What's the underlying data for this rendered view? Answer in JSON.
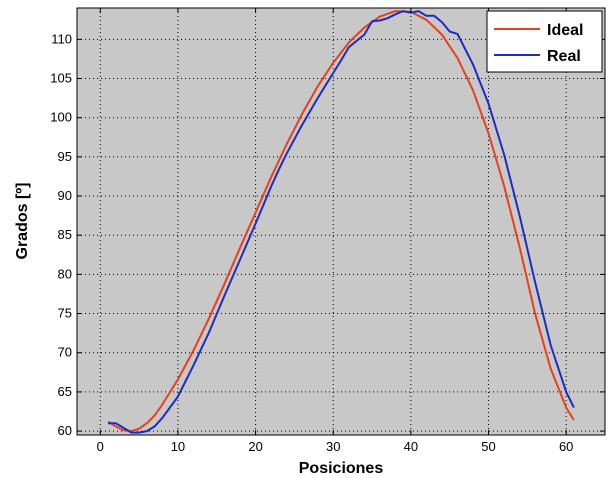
{
  "chart_data": {
    "type": "line",
    "title": "",
    "xlabel": "Posiciones",
    "ylabel": "Grados [º]",
    "xlim": [
      -3,
      65
    ],
    "ylim": [
      59.5,
      114
    ],
    "xticks": [
      0,
      10,
      20,
      30,
      40,
      50,
      60
    ],
    "yticks": [
      60,
      65,
      70,
      75,
      80,
      85,
      90,
      95,
      100,
      105,
      110
    ],
    "grid": true,
    "legend_position": "top-right",
    "background_color": "#c8c8c8",
    "series": [
      {
        "name": "Ideal",
        "color": "#e8401c",
        "x": [
          1,
          2,
          3,
          4,
          5,
          6,
          7,
          8,
          10,
          12,
          14,
          16,
          18,
          20,
          22,
          24,
          26,
          28,
          30,
          32,
          34,
          36,
          38,
          40,
          42,
          44,
          46,
          48,
          50,
          52,
          54,
          56,
          58,
          60,
          61
        ],
        "y": [
          61.2,
          60.6,
          60.1,
          60.0,
          60.3,
          61.0,
          62.0,
          63.4,
          66.6,
          70.3,
          74.4,
          78.8,
          83.4,
          87.9,
          92.4,
          96.6,
          100.5,
          104.0,
          107.0,
          109.6,
          111.5,
          112.9,
          113.6,
          113.5,
          112.5,
          110.6,
          107.6,
          103.5,
          98.0,
          91.3,
          83.5,
          75.0,
          68.0,
          63.0,
          61.4
        ]
      },
      {
        "name": "Real",
        "color": "#1c2dbf",
        "x": [
          1,
          2,
          3,
          4,
          5,
          6,
          7,
          8,
          10,
          12,
          14,
          16,
          18,
          20,
          22,
          23,
          24,
          26,
          28,
          30,
          31,
          32,
          34,
          35,
          36,
          37,
          38,
          39,
          40,
          41,
          42,
          43,
          44,
          45,
          46,
          48,
          50,
          52,
          54,
          56,
          58,
          60,
          61
        ],
        "y": [
          61.0,
          61.0,
          60.4,
          59.8,
          59.8,
          60.0,
          60.6,
          61.7,
          64.4,
          68.4,
          72.6,
          77.3,
          81.9,
          86.5,
          91.2,
          93.4,
          95.4,
          99.1,
          102.5,
          105.7,
          107.3,
          109.0,
          110.6,
          112.3,
          112.4,
          112.7,
          113.2,
          113.6,
          113.4,
          113.6,
          113.0,
          113.0,
          112.2,
          111.0,
          110.7,
          106.8,
          101.8,
          95.3,
          87.5,
          79.0,
          71.0,
          65.0,
          63.0
        ]
      }
    ]
  }
}
